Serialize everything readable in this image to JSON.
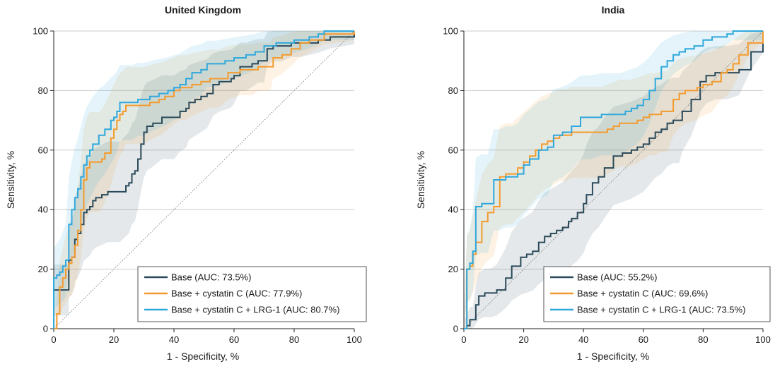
{
  "colors": {
    "Base": "#2b4a5a",
    "Base + cystatin C": "#f39b2e",
    "Base + cystatin C + LRG-1": "#2fa8dc",
    "grid": "#cccccc",
    "diagonal": "#888888"
  },
  "chart_data": [
    {
      "type": "line",
      "title": "United Kingdom",
      "xlabel": "1 - Specificity, %",
      "ylabel": "Sensitivity, %",
      "xlim": [
        0,
        100
      ],
      "ylim": [
        0,
        100
      ],
      "xticks": [
        "0",
        "20",
        "40",
        "60",
        "80",
        "100"
      ],
      "yticks": [
        "0",
        "20",
        "40",
        "60",
        "80",
        "100"
      ],
      "grid": "horizontal",
      "legend": "bottom-right",
      "series": [
        {
          "name": "Base (AUC: 73.5%)",
          "key": "Base",
          "x": [
            0,
            0,
            1,
            5,
            5,
            6,
            7,
            7,
            8,
            9,
            10,
            11,
            12,
            13,
            14,
            16,
            18,
            20,
            21,
            22,
            24,
            25,
            26,
            27,
            28,
            29,
            30,
            31,
            33,
            36,
            40,
            42,
            44,
            45,
            47,
            49,
            51,
            53,
            55,
            59,
            60,
            62,
            64,
            66,
            68,
            70,
            71,
            73,
            76,
            79,
            82,
            88,
            92,
            100
          ],
          "y": [
            0,
            13,
            13,
            13,
            23,
            24,
            28,
            30,
            32,
            35,
            39,
            40,
            41,
            43,
            44,
            45,
            46,
            46,
            46,
            46,
            48,
            49,
            52,
            53,
            57,
            62,
            66,
            68,
            69,
            71,
            71,
            73,
            74,
            76,
            77,
            78,
            79,
            82,
            83,
            84,
            85,
            88,
            88,
            89,
            90,
            90,
            94,
            95,
            95,
            96,
            96,
            97,
            98,
            99
          ]
        },
        {
          "name": "Base + cystatin C (AUC: 77.9%)",
          "key": "Base + cystatin C",
          "x": [
            0,
            1,
            2,
            3,
            4,
            5,
            6,
            7,
            8,
            9,
            10,
            11,
            12,
            13,
            15,
            16,
            17,
            19,
            20,
            21,
            22,
            23,
            24,
            26,
            28,
            30,
            32,
            35,
            37,
            40,
            42,
            44,
            46,
            49,
            52,
            55,
            58,
            62,
            66,
            68,
            72,
            73,
            76,
            79,
            82,
            85,
            90,
            100
          ],
          "y": [
            0,
            5,
            14,
            17,
            20,
            22,
            24,
            28,
            33,
            40,
            50,
            54,
            56,
            56,
            56,
            57,
            59,
            64,
            67,
            70,
            72,
            73,
            75,
            75,
            75,
            75,
            76,
            77,
            78,
            80,
            81,
            81,
            82,
            83,
            84,
            84,
            86,
            87,
            87,
            88,
            88,
            91,
            92,
            94,
            96,
            97,
            99,
            100
          ],
          "note": ""
        },
        {
          "name": "Base + cystatin C + LRG-1 (AUC: 80.7%)",
          "key": "Base + cystatin C + LRG-1",
          "x": [
            0,
            0,
            1,
            2,
            3,
            4,
            5,
            6,
            7,
            8,
            9,
            10,
            11,
            12,
            13,
            15,
            17,
            19,
            20,
            21,
            22,
            23,
            24,
            26,
            28,
            30,
            32,
            35,
            38,
            40,
            42,
            44,
            46,
            49,
            51,
            54,
            57,
            60,
            64,
            67,
            70,
            74,
            80,
            85,
            88,
            90,
            100
          ],
          "y": [
            0,
            17,
            18,
            19,
            21,
            23,
            35,
            40,
            44,
            47,
            51,
            55,
            58,
            60,
            62,
            65,
            67,
            70,
            71,
            73,
            76,
            76,
            76,
            76,
            77,
            77,
            78,
            79,
            80,
            81,
            82,
            84,
            86,
            87,
            89,
            89,
            90,
            91,
            92,
            93,
            95,
            96,
            97,
            98,
            99,
            100,
            100
          ]
        }
      ]
    },
    {
      "type": "line",
      "title": "India",
      "xlabel": "1 - Specificity, %",
      "ylabel": "Sensitivity, %",
      "xlim": [
        0,
        100
      ],
      "ylim": [
        0,
        100
      ],
      "xticks": [
        "0",
        "20",
        "40",
        "60",
        "80",
        "100"
      ],
      "yticks": [
        "0",
        "20",
        "40",
        "60",
        "80",
        "100"
      ],
      "grid": "horizontal",
      "legend": "bottom-right",
      "series": [
        {
          "name": "Base (AUC: 55.2%)",
          "key": "Base",
          "x": [
            0,
            1,
            2,
            3,
            4,
            5,
            7,
            9,
            11,
            14,
            16,
            19,
            21,
            23,
            25,
            27,
            29,
            31,
            33,
            35,
            36,
            38,
            40,
            41,
            43,
            45,
            47,
            50,
            53,
            56,
            58,
            60,
            62,
            64,
            66,
            68,
            70,
            72,
            73,
            76,
            79,
            81,
            84,
            88,
            92,
            96,
            100
          ],
          "y": [
            0,
            1,
            3,
            3,
            8,
            11,
            12,
            12,
            13,
            17,
            21,
            24,
            25,
            26,
            29,
            31,
            32,
            33,
            34,
            36,
            37,
            39,
            42,
            45,
            49,
            51,
            54,
            58,
            59,
            60,
            61,
            62,
            64,
            66,
            67,
            69,
            70,
            70,
            73,
            77,
            83,
            85,
            86,
            86,
            87,
            93,
            97
          ]
        },
        {
          "name": "Base + cystatin C (AUC: 69.6%)",
          "key": "Base + cystatin C",
          "x": [
            0,
            1,
            2,
            3,
            4,
            6,
            8,
            10,
            12,
            14,
            16,
            18,
            20,
            22,
            24,
            26,
            28,
            30,
            32,
            34,
            36,
            38,
            40,
            42,
            44,
            46,
            48,
            50,
            52,
            55,
            58,
            60,
            62,
            64,
            66,
            68,
            70,
            72,
            74,
            78,
            80,
            83,
            86,
            88,
            90,
            92,
            95,
            100
          ],
          "y": [
            0,
            20,
            21,
            25,
            29,
            36,
            39,
            41,
            51,
            52,
            52,
            54,
            56,
            58,
            60,
            62,
            63,
            64,
            65,
            65,
            66,
            66,
            66,
            66,
            66,
            66,
            67,
            68,
            69,
            69,
            70,
            71,
            72,
            72,
            73,
            73,
            77,
            79,
            80,
            81,
            82,
            83,
            86,
            87,
            89,
            92,
            96,
            100
          ]
        },
        {
          "name": "Base + cystatin C + LRG-1 (AUC: 73.5%)",
          "key": "Base + cystatin C + LRG-1",
          "x": [
            0,
            1,
            2,
            3,
            4,
            6,
            8,
            10,
            12,
            14,
            16,
            18,
            20,
            22,
            25,
            28,
            30,
            33,
            36,
            39,
            42,
            46,
            50,
            52,
            54,
            56,
            58,
            60,
            62,
            64,
            66,
            68,
            70,
            72,
            74,
            77,
            80,
            83,
            86,
            88,
            90,
            94,
            100
          ],
          "y": [
            0,
            20,
            22,
            26,
            41,
            42,
            42,
            50,
            50,
            51,
            51,
            52,
            55,
            57,
            60,
            61,
            65,
            66,
            68,
            71,
            71,
            72,
            72,
            72,
            73,
            74,
            75,
            77,
            80,
            84,
            88,
            90,
            92,
            93,
            94,
            95,
            97,
            98,
            98,
            99,
            100,
            100,
            100
          ]
        }
      ]
    }
  ]
}
